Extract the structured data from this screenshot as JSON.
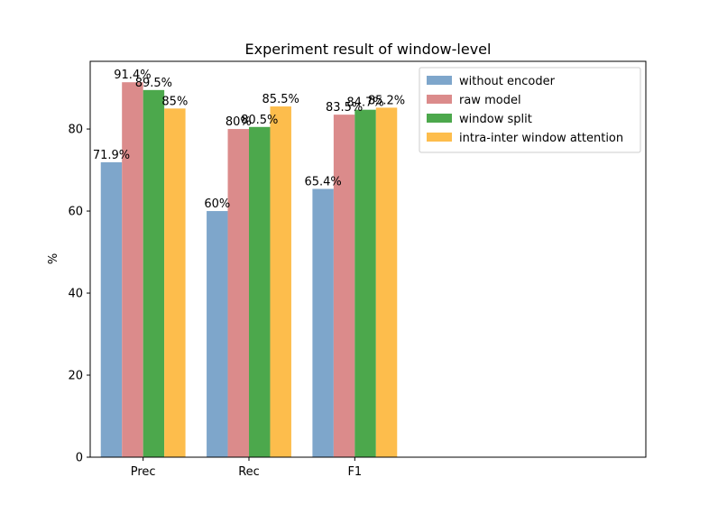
{
  "chart_data": {
    "type": "bar",
    "title": "Experiment result of window-level",
    "xlabel": "",
    "ylabel": "%",
    "categories": [
      "Prec",
      "Rec",
      "F1"
    ],
    "ylim": [
      0,
      96.5
    ],
    "yticks": [
      0,
      20,
      40,
      60,
      80
    ],
    "x_extent": [
      -0.5,
      4.75
    ],
    "grid": false,
    "legend_position": "top-right",
    "series": [
      {
        "name": "without encoder",
        "color": "#7ea6cb",
        "values": [
          71.9,
          60,
          65.4
        ],
        "labels": [
          "71.9%",
          "60%",
          "65.4%"
        ]
      },
      {
        "name": "raw model",
        "color": "#db8b8b",
        "values": [
          91.4,
          80,
          83.5
        ],
        "labels": [
          "91.4%",
          "80%",
          "83.5%"
        ]
      },
      {
        "name": "window split",
        "color": "#4ca84c",
        "values": [
          89.5,
          80.5,
          84.7
        ],
        "labels": [
          "89.5%",
          "80.5%",
          "84.7%"
        ]
      },
      {
        "name": "intra-inter window attention",
        "color": "#fdbd4c",
        "values": [
          85,
          85.5,
          85.2
        ],
        "labels": [
          "85%",
          "85.5%",
          "85.2%"
        ]
      }
    ]
  }
}
